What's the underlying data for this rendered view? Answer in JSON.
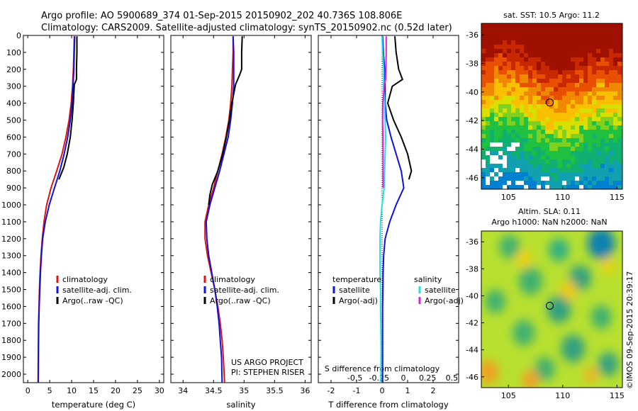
{
  "header": {
    "line1": "Argo profile: AO 5900689_374 01-Sep-2015 20150902_202 40.736S 108.806E",
    "line2": "Climatology: CARS2009. Satellite-adjusted climatology: synTS_20150902.nc (0.52d later)"
  },
  "credit": "©IMOS 09-Sep-2015 20:39:17",
  "chart_data": [
    {
      "id": "temperature-profile",
      "type": "line",
      "xlabel": "temperature (deg C)",
      "xlim": [
        -1,
        31
      ],
      "xticks": [
        0,
        5,
        10,
        15,
        20,
        25,
        30
      ],
      "xtick_labels": [
        "0",
        "5",
        "10",
        "15",
        "20",
        "25",
        "30"
      ],
      "ylim": [
        0,
        2050
      ],
      "yticks": [
        0,
        100,
        200,
        300,
        400,
        500,
        600,
        700,
        800,
        900,
        1000,
        1100,
        1200,
        1300,
        1400,
        1500,
        1600,
        1700,
        1800,
        1900,
        2000
      ],
      "ytick_labels": [
        "0",
        "100",
        "200",
        "300",
        "400",
        "500",
        "600",
        "700",
        "800",
        "900",
        "1000",
        "1100",
        "1200",
        "1300",
        "1400",
        "1500",
        "1600",
        "1700",
        "1800",
        "1900",
        "2000"
      ],
      "y_reversed": true,
      "legend": [
        "climatology",
        "satellite-adj. clim.",
        "Argo(..raw -QC)"
      ],
      "legend_placement": "lower-center",
      "series": [
        {
          "name": "climatology",
          "color": "#e01010",
          "x": [
            10.6,
            10.5,
            10.4,
            10.2,
            9.9,
            9.4,
            8.7,
            7.8,
            6.6,
            5.3,
            4.3,
            3.7,
            3.3,
            3.0,
            2.8,
            2.65,
            2.55,
            2.45,
            2.4,
            2.35
          ],
          "y": [
            5,
            100,
            200,
            300,
            400,
            500,
            600,
            700,
            800,
            900,
            1000,
            1100,
            1200,
            1300,
            1400,
            1500,
            1600,
            1700,
            1850,
            2050
          ]
        },
        {
          "name": "satellite-adj. clim.",
          "color": "#1010e0",
          "x": [
            10.7,
            10.6,
            10.5,
            10.3,
            10.1,
            9.7,
            9.1,
            8.3,
            7.3,
            6.1,
            4.9,
            4.0,
            3.4,
            3.1,
            2.9,
            2.75,
            2.6,
            2.5,
            2.45,
            2.4
          ],
          "y": [
            5,
            100,
            200,
            300,
            400,
            500,
            600,
            700,
            800,
            900,
            1000,
            1100,
            1200,
            1300,
            1400,
            1500,
            1600,
            1700,
            1850,
            2050
          ]
        },
        {
          "name": "Argo(..raw -QC)",
          "color": "#000000",
          "x": [
            11.2,
            11.2,
            11.1,
            11.1,
            10.6,
            10.4,
            10.1,
            9.7,
            9.0,
            8.2,
            7.1
          ],
          "y": [
            5,
            100,
            200,
            260,
            290,
            400,
            500,
            600,
            700,
            780,
            850
          ]
        }
      ]
    },
    {
      "id": "salinity-profile",
      "type": "line",
      "xlabel": "salinity",
      "xlim": [
        33.8,
        36.1
      ],
      "xticks": [
        34,
        34.5,
        35,
        35.5,
        36
      ],
      "xtick_labels": [
        "34",
        "34.5",
        "35",
        "35.5",
        "36"
      ],
      "ylim": [
        0,
        2050
      ],
      "y_reversed": true,
      "legend": [
        "climatology",
        "satellite-adj. clim.",
        "Argo(..raw -QC)"
      ],
      "legend_placement": "lower-center",
      "annotation": [
        "US ARGO PROJECT",
        "PI: STEPHEN RISER"
      ],
      "series": [
        {
          "name": "climatology",
          "color": "#e01010",
          "x": [
            34.82,
            34.82,
            34.81,
            34.8,
            34.78,
            34.75,
            34.7,
            34.64,
            34.57,
            34.5,
            34.42,
            34.36,
            34.36,
            34.4,
            34.46,
            34.52,
            34.57,
            34.61,
            34.64,
            34.66,
            34.68
          ],
          "y": [
            5,
            100,
            200,
            300,
            400,
            500,
            600,
            700,
            800,
            900,
            1000,
            1100,
            1200,
            1300,
            1400,
            1500,
            1600,
            1700,
            1800,
            1900,
            2050
          ]
        },
        {
          "name": "satellite-adj. clim.",
          "color": "#1010e0",
          "x": [
            34.82,
            34.83,
            34.83,
            34.83,
            34.81,
            34.78,
            34.74,
            34.67,
            34.6,
            34.52,
            34.44,
            34.38,
            34.39,
            34.42,
            34.47,
            34.52,
            34.56,
            34.59,
            34.61,
            34.63,
            34.64
          ],
          "y": [
            5,
            100,
            200,
            300,
            400,
            500,
            600,
            700,
            800,
            900,
            1000,
            1100,
            1200,
            1300,
            1400,
            1500,
            1600,
            1700,
            1800,
            1900,
            2050
          ]
        },
        {
          "name": "Argo(..raw -QC)",
          "color": "#000000",
          "x": [
            34.97,
            34.96,
            34.96,
            34.93,
            34.86,
            34.8,
            34.76,
            34.71,
            34.65,
            34.57,
            34.48,
            34.44,
            34.42
          ],
          "y": [
            5,
            100,
            200,
            230,
            290,
            400,
            500,
            600,
            700,
            800,
            880,
            940,
            1000
          ]
        }
      ]
    },
    {
      "id": "difference-profile",
      "type": "line",
      "xlabel": "T difference from climatology",
      "xlabel_top": "S difference from climatology",
      "xlim": [
        -2.5,
        3.0
      ],
      "xticks": [
        -2,
        -1,
        0,
        1,
        2
      ],
      "xtick_labels": [
        "-2",
        "-1",
        "0",
        "1",
        "2"
      ],
      "xticks_s_labels": [
        "-0.5",
        "-0.25",
        "0",
        "0.25",
        "0.5"
      ],
      "ylim": [
        0,
        2050
      ],
      "y_reversed": true,
      "legend": [
        "temperature",
        "satellite",
        "Argo(-adj)",
        "salinity",
        "satellite",
        "Argo(-adj)"
      ],
      "legend_placement": "lower-center",
      "series": [
        {
          "name": "satellite",
          "group": "temperature",
          "color": "#1010e0",
          "x": [
            0.02,
            0.05,
            0.1,
            0.12,
            0.12,
            0.18,
            0.35,
            0.55,
            0.75,
            0.85,
            0.55,
            0.3,
            0.12,
            0.06,
            0.04,
            0.03,
            0.02,
            0.02,
            0.02,
            0.02
          ],
          "y": [
            5,
            100,
            200,
            300,
            400,
            500,
            600,
            700,
            800,
            900,
            1000,
            1100,
            1200,
            1300,
            1400,
            1500,
            1600,
            1700,
            1850,
            2050
          ]
        },
        {
          "name": "Argo(-adj)",
          "group": "temperature",
          "color": "#000000",
          "x": [
            0.5,
            0.55,
            0.65,
            0.8,
            0.4,
            0.22,
            0.45,
            0.75,
            1.0,
            1.15,
            1.05
          ],
          "y": [
            5,
            100,
            200,
            260,
            300,
            400,
            500,
            600,
            700,
            800,
            850
          ]
        },
        {
          "name": "satellite",
          "group": "salinity",
          "color": "#20e0e0",
          "x": [
            0.0,
            0.02,
            0.06,
            0.06,
            0.1,
            0.12,
            0.14,
            0.12,
            0.1,
            0.08,
            0.0,
            -0.06,
            -0.08,
            -0.08,
            -0.08,
            -0.06,
            -0.06,
            -0.05,
            -0.04,
            -0.05
          ],
          "y": [
            5,
            100,
            200,
            300,
            400,
            500,
            600,
            700,
            800,
            900,
            1000,
            1100,
            1200,
            1300,
            1400,
            1500,
            1600,
            1700,
            1850,
            2050
          ]
        },
        {
          "name": "Argo(-adj)",
          "group": "salinity",
          "color": "#e020e0",
          "x": [
            0.16,
            0.16,
            0.15,
            0.14,
            0.09,
            0.03,
            0.02,
            0.03,
            0.04,
            0.04,
            0.04
          ],
          "y": [
            5,
            100,
            200,
            260,
            290,
            400,
            500,
            600,
            700,
            800,
            900
          ]
        }
      ]
    },
    {
      "id": "sst-map",
      "type": "heatmap",
      "title": "sat. SST: 10.5  Argo: 11.2",
      "xlim": [
        102.5,
        115.5
      ],
      "ylim": [
        -46.8,
        -35.2
      ],
      "xticks": [
        105,
        110,
        115
      ],
      "xtick_labels": [
        "105",
        "110",
        "115"
      ],
      "yticks": [
        -36,
        -38,
        -40,
        -42,
        -44,
        -46
      ],
      "ytick_labels": [
        "-36",
        "-38",
        "-40",
        "-42",
        "-44",
        "-46"
      ],
      "marker": {
        "lon": 108.806,
        "lat": -40.736
      }
    },
    {
      "id": "sla-map",
      "type": "heatmap",
      "title": "Altim. SLA: 0.11",
      "subtitle": "Argo h1000: NaN h2000: NaN",
      "xlim": [
        102.5,
        115.5
      ],
      "ylim": [
        -46.8,
        -35.2
      ],
      "xticks": [
        105,
        110,
        115
      ],
      "xtick_labels": [
        "105",
        "110",
        "115"
      ],
      "yticks": [
        -36,
        -38,
        -40,
        -42,
        -44,
        -46
      ],
      "ytick_labels": [
        "-36",
        "-38",
        "-40",
        "-42",
        "-44",
        "-46"
      ],
      "marker": {
        "lon": 108.806,
        "lat": -40.736
      }
    }
  ]
}
